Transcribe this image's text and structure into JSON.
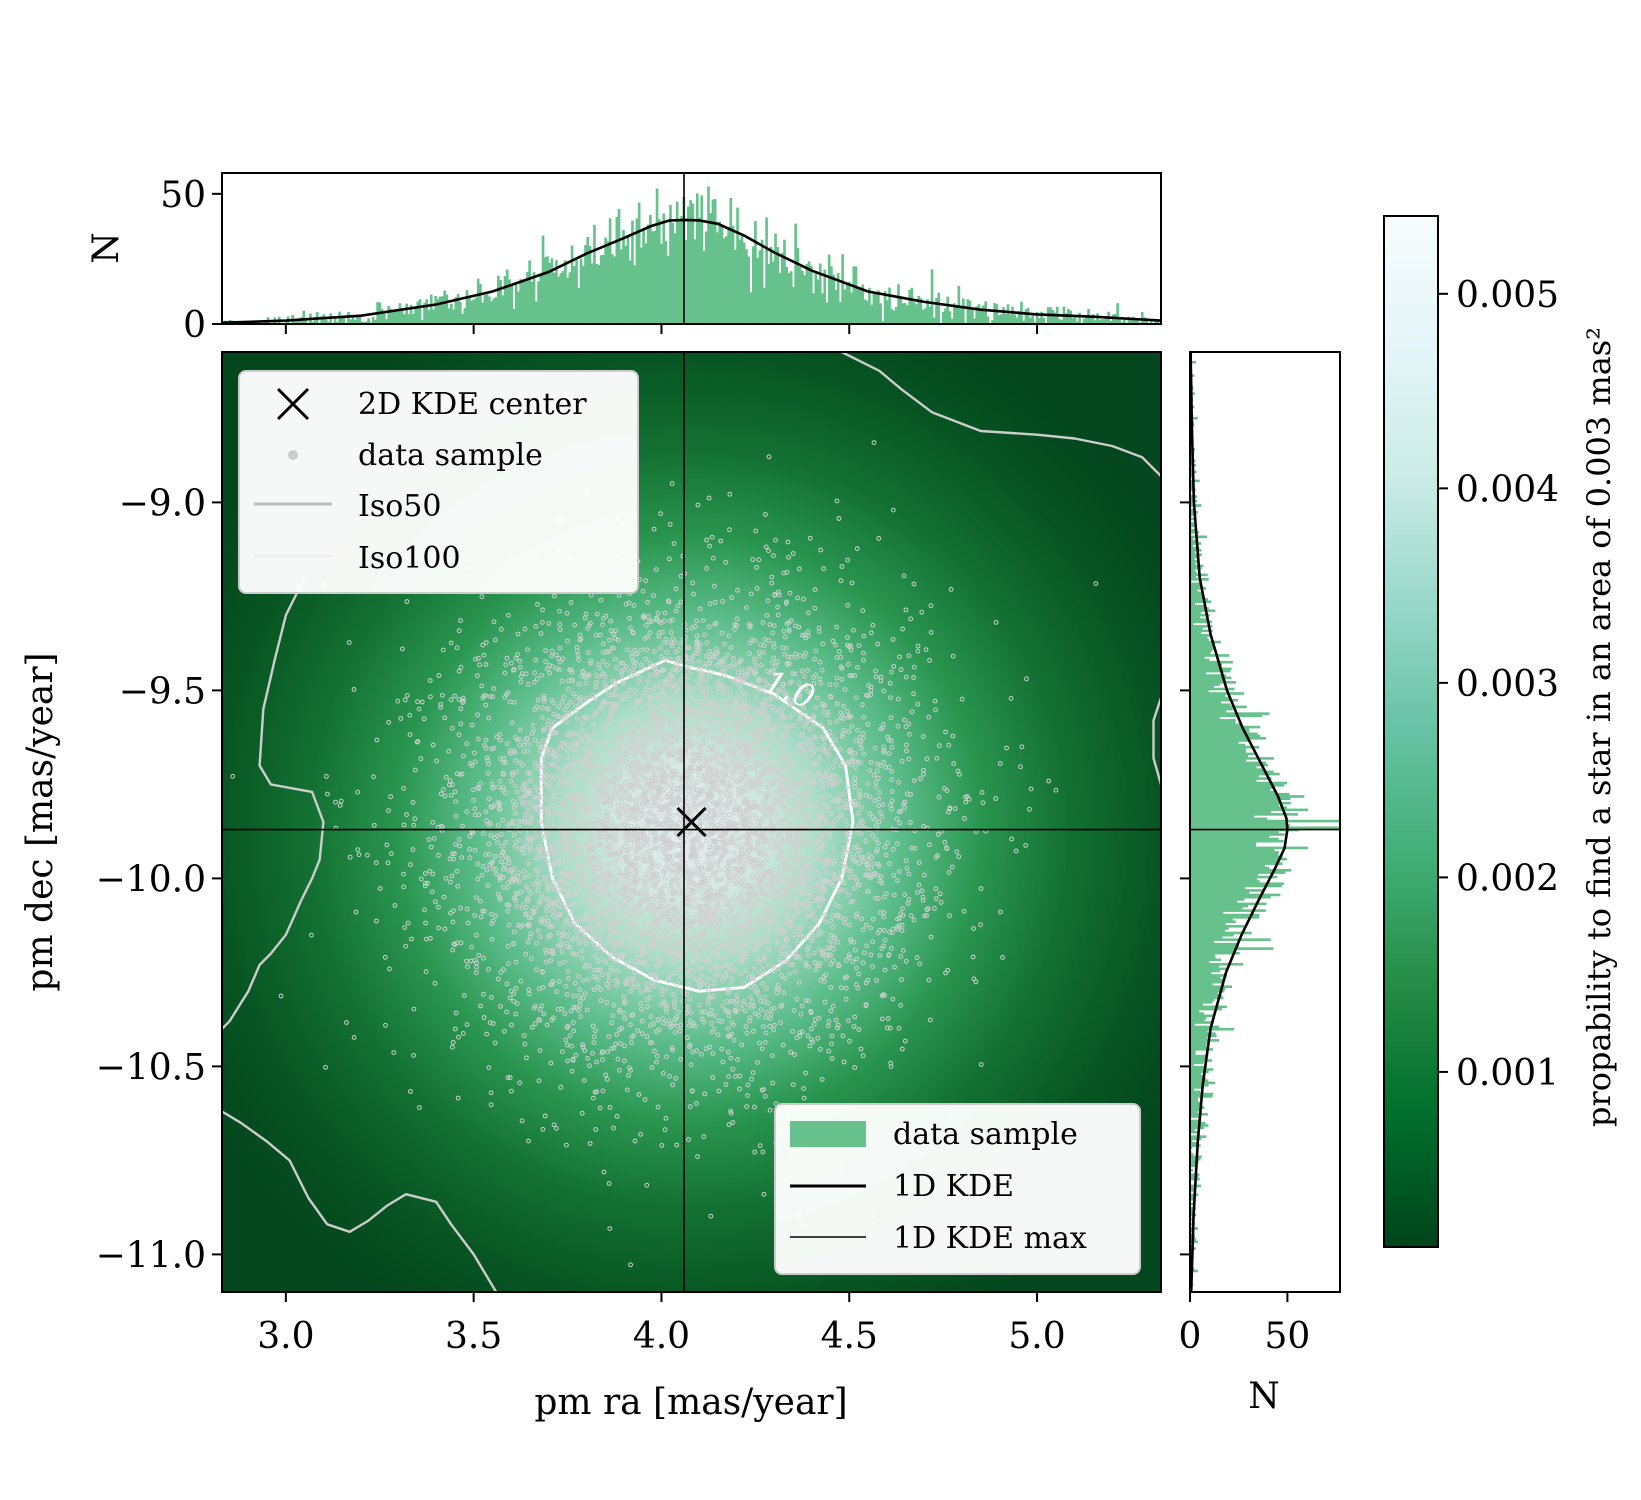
{
  "chart_data": [
    {
      "panel": "main",
      "type": "scatter",
      "xlabel": "pm ra [mas/year]",
      "ylabel": "pm dec [mas/year]",
      "xlim": [
        2.83,
        5.33
      ],
      "ylim": [
        -11.1,
        -8.6
      ],
      "xticks": [
        3.0,
        3.5,
        4.0,
        4.5,
        5.0
      ],
      "xtick_labels": [
        "3.0",
        "3.5",
        "4.0",
        "4.5",
        "5.0"
      ],
      "yticks": [
        -9.0,
        -9.5,
        -10.0,
        -10.5,
        -11.0
      ],
      "ytick_labels": [
        "−9.0",
        "−9.5",
        "−10.0",
        "−10.5",
        "−11.0"
      ],
      "background": "2D KDE density (green colormap)",
      "kde_center": {
        "x": 4.08,
        "y": -9.85
      },
      "kde_1d_max": {
        "x": 4.06,
        "y": -9.87
      },
      "scatter_sample": {
        "count": 6000,
        "center": [
          4.07,
          -9.87
        ],
        "sigma": [
          0.3,
          0.3
        ]
      },
      "contour_label": "1.0",
      "contours": [
        {
          "name": "inner",
          "label": "1.0",
          "color": "#ffffff",
          "x": [
            3.88,
            4.01,
            4.08,
            4.17,
            4.3,
            4.43,
            4.49,
            4.51,
            4.48,
            4.42,
            4.33,
            4.22,
            4.1,
            3.98,
            3.87,
            3.77,
            3.71,
            3.68,
            3.68,
            3.71,
            3.79,
            3.88
          ],
          "y": [
            -9.48,
            -9.42,
            -9.44,
            -9.46,
            -9.51,
            -9.6,
            -9.7,
            -9.85,
            -10.0,
            -10.12,
            -10.22,
            -10.29,
            -10.3,
            -10.27,
            -10.21,
            -10.12,
            -10.0,
            -9.85,
            -9.68,
            -9.6,
            -9.54,
            -9.48
          ]
        },
        {
          "name": "outer-left",
          "label": "",
          "color": "#cccccc",
          "x": [
            3.05,
            3.0,
            2.97,
            2.94,
            2.93,
            2.96,
            3.07,
            3.1,
            3.09,
            3.07,
            3.04,
            3.0,
            2.96,
            2.93,
            2.9,
            2.85,
            2.83
          ],
          "y": [
            -9.2,
            -9.3,
            -9.42,
            -9.55,
            -9.7,
            -9.75,
            -9.77,
            -9.85,
            -9.95,
            -10.0,
            -10.06,
            -10.15,
            -10.2,
            -10.23,
            -10.3,
            -10.38,
            -10.4
          ]
        },
        {
          "name": "outer-bottom",
          "label": "",
          "color": "#cccccc",
          "x": [
            2.83,
            2.88,
            2.95,
            3.01,
            3.06,
            3.11,
            3.17,
            3.22,
            3.27,
            3.32,
            3.4,
            3.44,
            3.5,
            3.56
          ],
          "y": [
            -10.62,
            -10.65,
            -10.7,
            -10.75,
            -10.85,
            -10.92,
            -10.94,
            -10.91,
            -10.87,
            -10.84,
            -10.86,
            -10.92,
            -11.0,
            -11.1
          ]
        },
        {
          "name": "outer-top-right",
          "label": "",
          "color": "#cccccc",
          "x": [
            4.48,
            4.58,
            4.64,
            4.72,
            4.85,
            5.0,
            5.1,
            5.2,
            5.28,
            5.33
          ],
          "y": [
            -8.6,
            -8.65,
            -8.7,
            -8.76,
            -8.81,
            -8.82,
            -8.83,
            -8.85,
            -8.88,
            -8.93
          ]
        },
        {
          "name": "outer-right",
          "label": "",
          "color": "#cccccc",
          "x": [
            5.33,
            5.31,
            5.31,
            5.33
          ],
          "y": [
            -9.52,
            -9.58,
            -9.68,
            -9.75
          ]
        }
      ],
      "legend_upper_left": [
        "2D KDE center",
        "data sample",
        "Iso50",
        "Iso100"
      ],
      "legend_lower_right": [
        "data sample",
        "1D KDE",
        "1D KDE max"
      ]
    },
    {
      "panel": "top-marginal",
      "type": "bar",
      "ylabel": "N",
      "ylim": [
        0,
        58
      ],
      "yticks": [
        0,
        50
      ],
      "ytick_labels": [
        "0",
        "50"
      ],
      "histogram_color": "#66c18c",
      "histogram_peak": 40,
      "kde_1d": {
        "x": [
          2.83,
          3.0,
          3.2,
          3.4,
          3.55,
          3.7,
          3.8,
          3.9,
          3.97,
          4.02,
          4.06,
          4.1,
          4.15,
          4.22,
          4.3,
          4.4,
          4.55,
          4.7,
          4.85,
          5.0,
          5.15,
          5.33
        ],
        "y": [
          0.5,
          1.3,
          3.2,
          7.5,
          12.5,
          20,
          27,
          33,
          37.5,
          39.7,
          40,
          39.8,
          38.5,
          34,
          27.5,
          20.5,
          12.5,
          8.5,
          5.5,
          3.7,
          2.8,
          1.3
        ]
      }
    },
    {
      "panel": "right-marginal",
      "type": "bar",
      "xlabel": "N",
      "xlim": [
        0,
        77
      ],
      "xticks": [
        0,
        50
      ],
      "xtick_labels": [
        "0",
        "50"
      ],
      "histogram_color": "#66c18c",
      "histogram_peak": 50,
      "kde_1d": {
        "y": [
          -8.6,
          -8.8,
          -9.0,
          -9.2,
          -9.35,
          -9.5,
          -9.6,
          -9.7,
          -9.78,
          -9.84,
          -9.87,
          -9.92,
          -9.98,
          -10.06,
          -10.15,
          -10.25,
          -10.4,
          -10.55,
          -10.7,
          -10.9,
          -11.1
        ],
        "x": [
          0.3,
          1.0,
          2.0,
          5.0,
          10.5,
          19,
          27,
          37,
          45,
          49.5,
          50,
          48.5,
          43,
          35,
          26.5,
          18.5,
          10.5,
          6.5,
          4.0,
          1.8,
          0.6
        ]
      }
    },
    {
      "panel": "colorbar",
      "type": "heatmap",
      "label": "propability to find a star in an area of 0.003 mas²",
      "range": [
        0.0001,
        0.0054
      ],
      "ticks": [
        0.001,
        0.002,
        0.003,
        0.004,
        0.005
      ],
      "tick_labels": [
        "0.001",
        "0.002",
        "0.003",
        "0.004",
        "0.005"
      ],
      "colormap": [
        "#00441b",
        "#006d2c",
        "#238b45",
        "#41ae76",
        "#66c2a4",
        "#99d8c9",
        "#ccece6",
        "#e5f5f9",
        "#f7fcfd"
      ]
    }
  ],
  "colors": {
    "scatter_point": "#d0d0d0",
    "center_marker": "#000000",
    "iso50": "#bdbdbd",
    "iso100": "#eeeeee",
    "kde_line": "#000000"
  }
}
